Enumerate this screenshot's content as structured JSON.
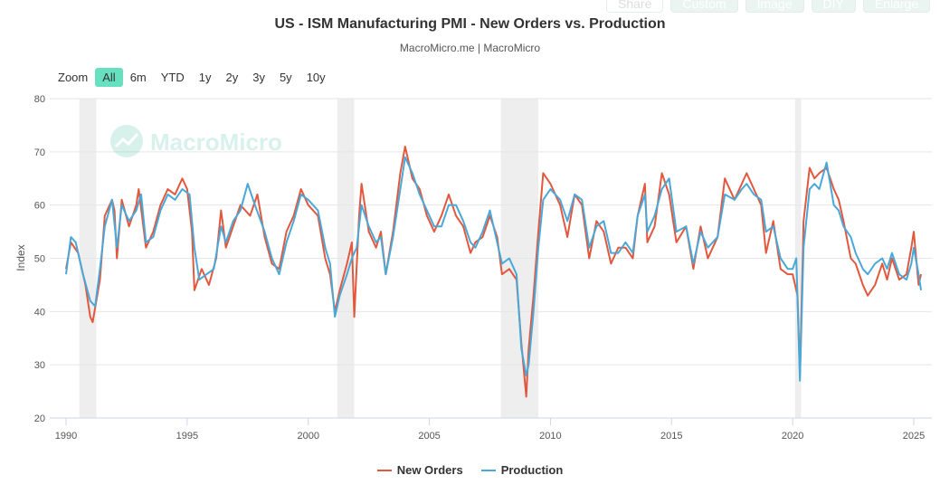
{
  "toolbar": {
    "share": "Share",
    "custom": "Custom",
    "image": "Image",
    "diy": "DIY",
    "enlarge": "Enlarge"
  },
  "zoom": {
    "label": "Zoom",
    "options": [
      "All",
      "6m",
      "YTD",
      "1y",
      "2y",
      "3y",
      "5y",
      "10y"
    ],
    "selected": "All"
  },
  "watermark": "MacroMicro",
  "chart_data": {
    "type": "line",
    "title": "US - ISM Manufacturing PMI - New Orders vs. Production",
    "subtitle": "MacroMicro.me | MacroMicro",
    "ylabel": "Index",
    "xlabel": "",
    "ylim": [
      20,
      80
    ],
    "yticks": [
      20,
      30,
      40,
      50,
      60,
      70,
      80
    ],
    "xlim": [
      1990,
      2025.5
    ],
    "xticks": [
      1990,
      1995,
      2000,
      2005,
      2010,
      2015,
      2020,
      2025
    ],
    "grid": true,
    "legend": "bottom-center",
    "recessions": [
      [
        1990.55,
        1991.25
      ],
      [
        2001.2,
        2001.9
      ],
      [
        2007.95,
        2009.5
      ],
      [
        2020.1,
        2020.35
      ]
    ],
    "series": [
      {
        "name": "New Orders",
        "color": "#e2583e",
        "points": [
          [
            1990,
            48
          ],
          [
            1990.2,
            53
          ],
          [
            1990.5,
            51
          ],
          [
            1990.8,
            45
          ],
          [
            1991,
            39
          ],
          [
            1991.1,
            38
          ],
          [
            1991.4,
            46
          ],
          [
            1991.6,
            58
          ],
          [
            1991.9,
            61
          ],
          [
            1992,
            59
          ],
          [
            1992.1,
            50
          ],
          [
            1992.3,
            61
          ],
          [
            1992.6,
            56
          ],
          [
            1992.9,
            60
          ],
          [
            1993,
            63
          ],
          [
            1993.3,
            52
          ],
          [
            1993.6,
            55
          ],
          [
            1993.9,
            60
          ],
          [
            1994.2,
            63
          ],
          [
            1994.5,
            62
          ],
          [
            1994.8,
            65
          ],
          [
            1995,
            63
          ],
          [
            1995.2,
            55
          ],
          [
            1995.3,
            44
          ],
          [
            1995.6,
            48
          ],
          [
            1995.9,
            45
          ],
          [
            1996.2,
            50
          ],
          [
            1996.4,
            59
          ],
          [
            1996.6,
            52
          ],
          [
            1996.9,
            56
          ],
          [
            1997.2,
            60
          ],
          [
            1997.6,
            58
          ],
          [
            1997.9,
            62
          ],
          [
            1998.2,
            54
          ],
          [
            1998.5,
            49
          ],
          [
            1998.8,
            48
          ],
          [
            1999.1,
            55
          ],
          [
            1999.4,
            58
          ],
          [
            1999.7,
            63
          ],
          [
            2000,
            60
          ],
          [
            2000.4,
            58
          ],
          [
            2000.7,
            50
          ],
          [
            2000.9,
            47
          ],
          [
            2001.1,
            40
          ],
          [
            2001.3,
            44
          ],
          [
            2001.6,
            49
          ],
          [
            2001.8,
            53
          ],
          [
            2001.9,
            39
          ],
          [
            2002.1,
            58
          ],
          [
            2002.2,
            64
          ],
          [
            2002.5,
            55
          ],
          [
            2002.8,
            52
          ],
          [
            2003,
            55
          ],
          [
            2003.2,
            47
          ],
          [
            2003.5,
            55
          ],
          [
            2003.8,
            66
          ],
          [
            2004,
            71
          ],
          [
            2004.3,
            65
          ],
          [
            2004.6,
            63
          ],
          [
            2004.9,
            58
          ],
          [
            2005.2,
            55
          ],
          [
            2005.5,
            58
          ],
          [
            2005.8,
            62
          ],
          [
            2006.1,
            58
          ],
          [
            2006.4,
            56
          ],
          [
            2006.7,
            51
          ],
          [
            2006.9,
            53
          ],
          [
            2007.2,
            54
          ],
          [
            2007.5,
            58
          ],
          [
            2007.8,
            54
          ],
          [
            2008,
            47
          ],
          [
            2008.3,
            48
          ],
          [
            2008.6,
            46
          ],
          [
            2008.8,
            34
          ],
          [
            2009,
            24
          ],
          [
            2009.1,
            33
          ],
          [
            2009.3,
            43
          ],
          [
            2009.5,
            55
          ],
          [
            2009.7,
            66
          ],
          [
            2010,
            64
          ],
          [
            2010.4,
            60
          ],
          [
            2010.7,
            54
          ],
          [
            2011,
            62
          ],
          [
            2011.3,
            60
          ],
          [
            2011.6,
            50
          ],
          [
            2011.9,
            57
          ],
          [
            2012.2,
            55
          ],
          [
            2012.5,
            49
          ],
          [
            2012.8,
            52
          ],
          [
            2013.1,
            52
          ],
          [
            2013.4,
            50
          ],
          [
            2013.6,
            58
          ],
          [
            2013.9,
            64
          ],
          [
            2014,
            53
          ],
          [
            2014.3,
            56
          ],
          [
            2014.6,
            66
          ],
          [
            2014.9,
            62
          ],
          [
            2015.2,
            53
          ],
          [
            2015.6,
            56
          ],
          [
            2015.9,
            48
          ],
          [
            2016.2,
            56
          ],
          [
            2016.5,
            50
          ],
          [
            2016.9,
            54
          ],
          [
            2017.2,
            65
          ],
          [
            2017.6,
            61
          ],
          [
            2017.9,
            64
          ],
          [
            2018.1,
            66
          ],
          [
            2018.4,
            63
          ],
          [
            2018.7,
            60
          ],
          [
            2018.9,
            51
          ],
          [
            2019.2,
            57
          ],
          [
            2019.5,
            48
          ],
          [
            2019.8,
            47
          ],
          [
            2020,
            47
          ],
          [
            2020.2,
            43
          ],
          [
            2020.3,
            28
          ],
          [
            2020.45,
            57
          ],
          [
            2020.7,
            67
          ],
          [
            2020.9,
            65
          ],
          [
            2021.1,
            66
          ],
          [
            2021.4,
            67
          ],
          [
            2021.7,
            63
          ],
          [
            2021.9,
            61
          ],
          [
            2022.1,
            57
          ],
          [
            2022.4,
            50
          ],
          [
            2022.6,
            49
          ],
          [
            2022.9,
            45
          ],
          [
            2023.1,
            43
          ],
          [
            2023.4,
            45
          ],
          [
            2023.7,
            49
          ],
          [
            2023.9,
            46
          ],
          [
            2024.1,
            50
          ],
          [
            2024.4,
            46
          ],
          [
            2024.7,
            47
          ],
          [
            2024.9,
            52
          ],
          [
            2025,
            55
          ],
          [
            2025.2,
            45
          ],
          [
            2025.3,
            47
          ]
        ]
      },
      {
        "name": "Production",
        "color": "#4aa8d8",
        "points": [
          [
            1990,
            47
          ],
          [
            1990.2,
            54
          ],
          [
            1990.4,
            53
          ],
          [
            1990.7,
            47
          ],
          [
            1991,
            42
          ],
          [
            1991.2,
            41
          ],
          [
            1991.4,
            48
          ],
          [
            1991.6,
            56
          ],
          [
            1991.9,
            61
          ],
          [
            1992.1,
            52
          ],
          [
            1992.3,
            60
          ],
          [
            1992.6,
            57
          ],
          [
            1992.9,
            59
          ],
          [
            1993.1,
            62
          ],
          [
            1993.3,
            53
          ],
          [
            1993.6,
            54
          ],
          [
            1993.9,
            59
          ],
          [
            1994.2,
            62
          ],
          [
            1994.5,
            61
          ],
          [
            1994.8,
            63
          ],
          [
            1995.1,
            62
          ],
          [
            1995.3,
            52
          ],
          [
            1995.5,
            46
          ],
          [
            1995.8,
            47
          ],
          [
            1996.1,
            48
          ],
          [
            1996.4,
            56
          ],
          [
            1996.6,
            53
          ],
          [
            1996.9,
            57
          ],
          [
            1997.2,
            59
          ],
          [
            1997.5,
            64
          ],
          [
            1997.8,
            60
          ],
          [
            1998.2,
            55
          ],
          [
            1998.5,
            50
          ],
          [
            1998.8,
            47
          ],
          [
            1999.1,
            53
          ],
          [
            1999.4,
            57
          ],
          [
            1999.7,
            62
          ],
          [
            2000,
            61
          ],
          [
            2000.4,
            59
          ],
          [
            2000.7,
            52
          ],
          [
            2000.9,
            49
          ],
          [
            2001.1,
            39
          ],
          [
            2001.3,
            43
          ],
          [
            2001.6,
            47
          ],
          [
            2001.8,
            50
          ],
          [
            2002,
            52
          ],
          [
            2002.2,
            60
          ],
          [
            2002.5,
            56
          ],
          [
            2002.8,
            53
          ],
          [
            2003,
            54
          ],
          [
            2003.2,
            47
          ],
          [
            2003.5,
            54
          ],
          [
            2003.8,
            63
          ],
          [
            2004,
            69
          ],
          [
            2004.3,
            66
          ],
          [
            2004.6,
            62
          ],
          [
            2004.9,
            59
          ],
          [
            2005.2,
            56
          ],
          [
            2005.5,
            56
          ],
          [
            2005.8,
            60
          ],
          [
            2006.1,
            60
          ],
          [
            2006.4,
            57
          ],
          [
            2006.7,
            53
          ],
          [
            2006.9,
            52
          ],
          [
            2007.2,
            55
          ],
          [
            2007.5,
            59
          ],
          [
            2007.8,
            53
          ],
          [
            2008,
            49
          ],
          [
            2008.3,
            50
          ],
          [
            2008.6,
            47
          ],
          [
            2008.8,
            33
          ],
          [
            2009,
            28
          ],
          [
            2009.1,
            30
          ],
          [
            2009.3,
            40
          ],
          [
            2009.5,
            52
          ],
          [
            2009.7,
            61
          ],
          [
            2010,
            63
          ],
          [
            2010.4,
            61
          ],
          [
            2010.7,
            57
          ],
          [
            2011,
            62
          ],
          [
            2011.3,
            61
          ],
          [
            2011.6,
            52
          ],
          [
            2011.9,
            56
          ],
          [
            2012.2,
            57
          ],
          [
            2012.5,
            51
          ],
          [
            2012.8,
            51
          ],
          [
            2013.1,
            53
          ],
          [
            2013.4,
            51
          ],
          [
            2013.6,
            58
          ],
          [
            2013.9,
            62
          ],
          [
            2014,
            55
          ],
          [
            2014.3,
            58
          ],
          [
            2014.6,
            63
          ],
          [
            2014.9,
            65
          ],
          [
            2015.2,
            55
          ],
          [
            2015.6,
            56
          ],
          [
            2015.9,
            49
          ],
          [
            2016.2,
            55
          ],
          [
            2016.5,
            52
          ],
          [
            2016.9,
            54
          ],
          [
            2017.2,
            62
          ],
          [
            2017.6,
            61
          ],
          [
            2017.9,
            63
          ],
          [
            2018.1,
            64
          ],
          [
            2018.4,
            62
          ],
          [
            2018.7,
            61
          ],
          [
            2018.9,
            55
          ],
          [
            2019.2,
            56
          ],
          [
            2019.5,
            50
          ],
          [
            2019.8,
            48
          ],
          [
            2020,
            48
          ],
          [
            2020.15,
            50
          ],
          [
            2020.3,
            27
          ],
          [
            2020.45,
            52
          ],
          [
            2020.7,
            63
          ],
          [
            2020.9,
            64
          ],
          [
            2021.1,
            63
          ],
          [
            2021.4,
            68
          ],
          [
            2021.7,
            60
          ],
          [
            2021.9,
            59
          ],
          [
            2022.1,
            56
          ],
          [
            2022.4,
            54
          ],
          [
            2022.6,
            51
          ],
          [
            2022.9,
            48
          ],
          [
            2023.1,
            47
          ],
          [
            2023.4,
            49
          ],
          [
            2023.7,
            50
          ],
          [
            2023.9,
            48
          ],
          [
            2024.1,
            51
          ],
          [
            2024.4,
            47
          ],
          [
            2024.7,
            46
          ],
          [
            2024.9,
            49
          ],
          [
            2025,
            52
          ],
          [
            2025.2,
            47
          ],
          [
            2025.3,
            44
          ]
        ]
      }
    ]
  }
}
